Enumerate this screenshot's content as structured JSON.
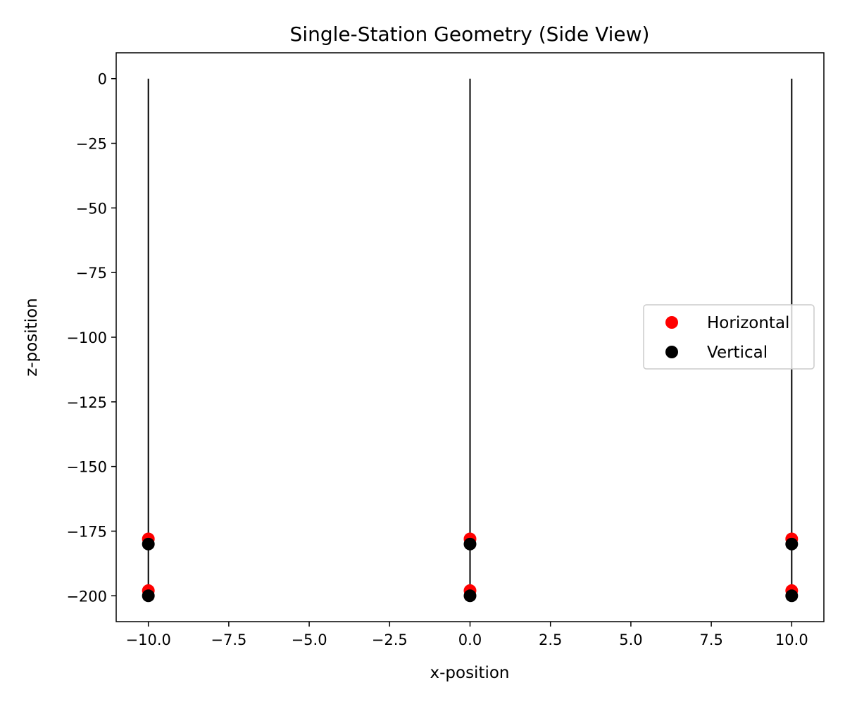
{
  "chart_data": {
    "type": "scatter",
    "title": "Single-Station Geometry (Side View)",
    "xlabel": "x-position",
    "ylabel": "z-position",
    "xlim": [
      -11,
      11
    ],
    "ylim": [
      -210,
      10
    ],
    "xticks": [
      -10.0,
      -7.5,
      -5.0,
      -2.5,
      0.0,
      2.5,
      5.0,
      7.5,
      10.0
    ],
    "xtick_labels": [
      "−10.0",
      "−7.5",
      "−5.0",
      "−2.5",
      "0.0",
      "2.5",
      "5.0",
      "7.5",
      "10.0"
    ],
    "yticks": [
      0,
      -25,
      -50,
      -75,
      -100,
      -125,
      -150,
      -175,
      -200
    ],
    "ytick_labels": [
      "0",
      "−25",
      "−50",
      "−75",
      "−100",
      "−125",
      "−150",
      "−175",
      "−200"
    ],
    "grid": false,
    "legend_position": "center-right",
    "strings": [
      {
        "x": -10,
        "z_top": 0,
        "z_bottom": -200
      },
      {
        "x": 0,
        "z_top": 0,
        "z_bottom": -200
      },
      {
        "x": 10,
        "z_top": 0,
        "z_bottom": -200
      }
    ],
    "series": [
      {
        "name": "Horizontal",
        "color": "#ff0000",
        "points": [
          {
            "x": -10,
            "z": -178
          },
          {
            "x": -10,
            "z": -198
          },
          {
            "x": 0,
            "z": -178
          },
          {
            "x": 0,
            "z": -198
          },
          {
            "x": 10,
            "z": -178
          },
          {
            "x": 10,
            "z": -198
          }
        ]
      },
      {
        "name": "Vertical",
        "color": "#000000",
        "points": [
          {
            "x": -10,
            "z": -180
          },
          {
            "x": -10,
            "z": -200
          },
          {
            "x": 0,
            "z": -180
          },
          {
            "x": 0,
            "z": -200
          },
          {
            "x": 10,
            "z": -180
          },
          {
            "x": 10,
            "z": -200
          }
        ]
      }
    ]
  }
}
